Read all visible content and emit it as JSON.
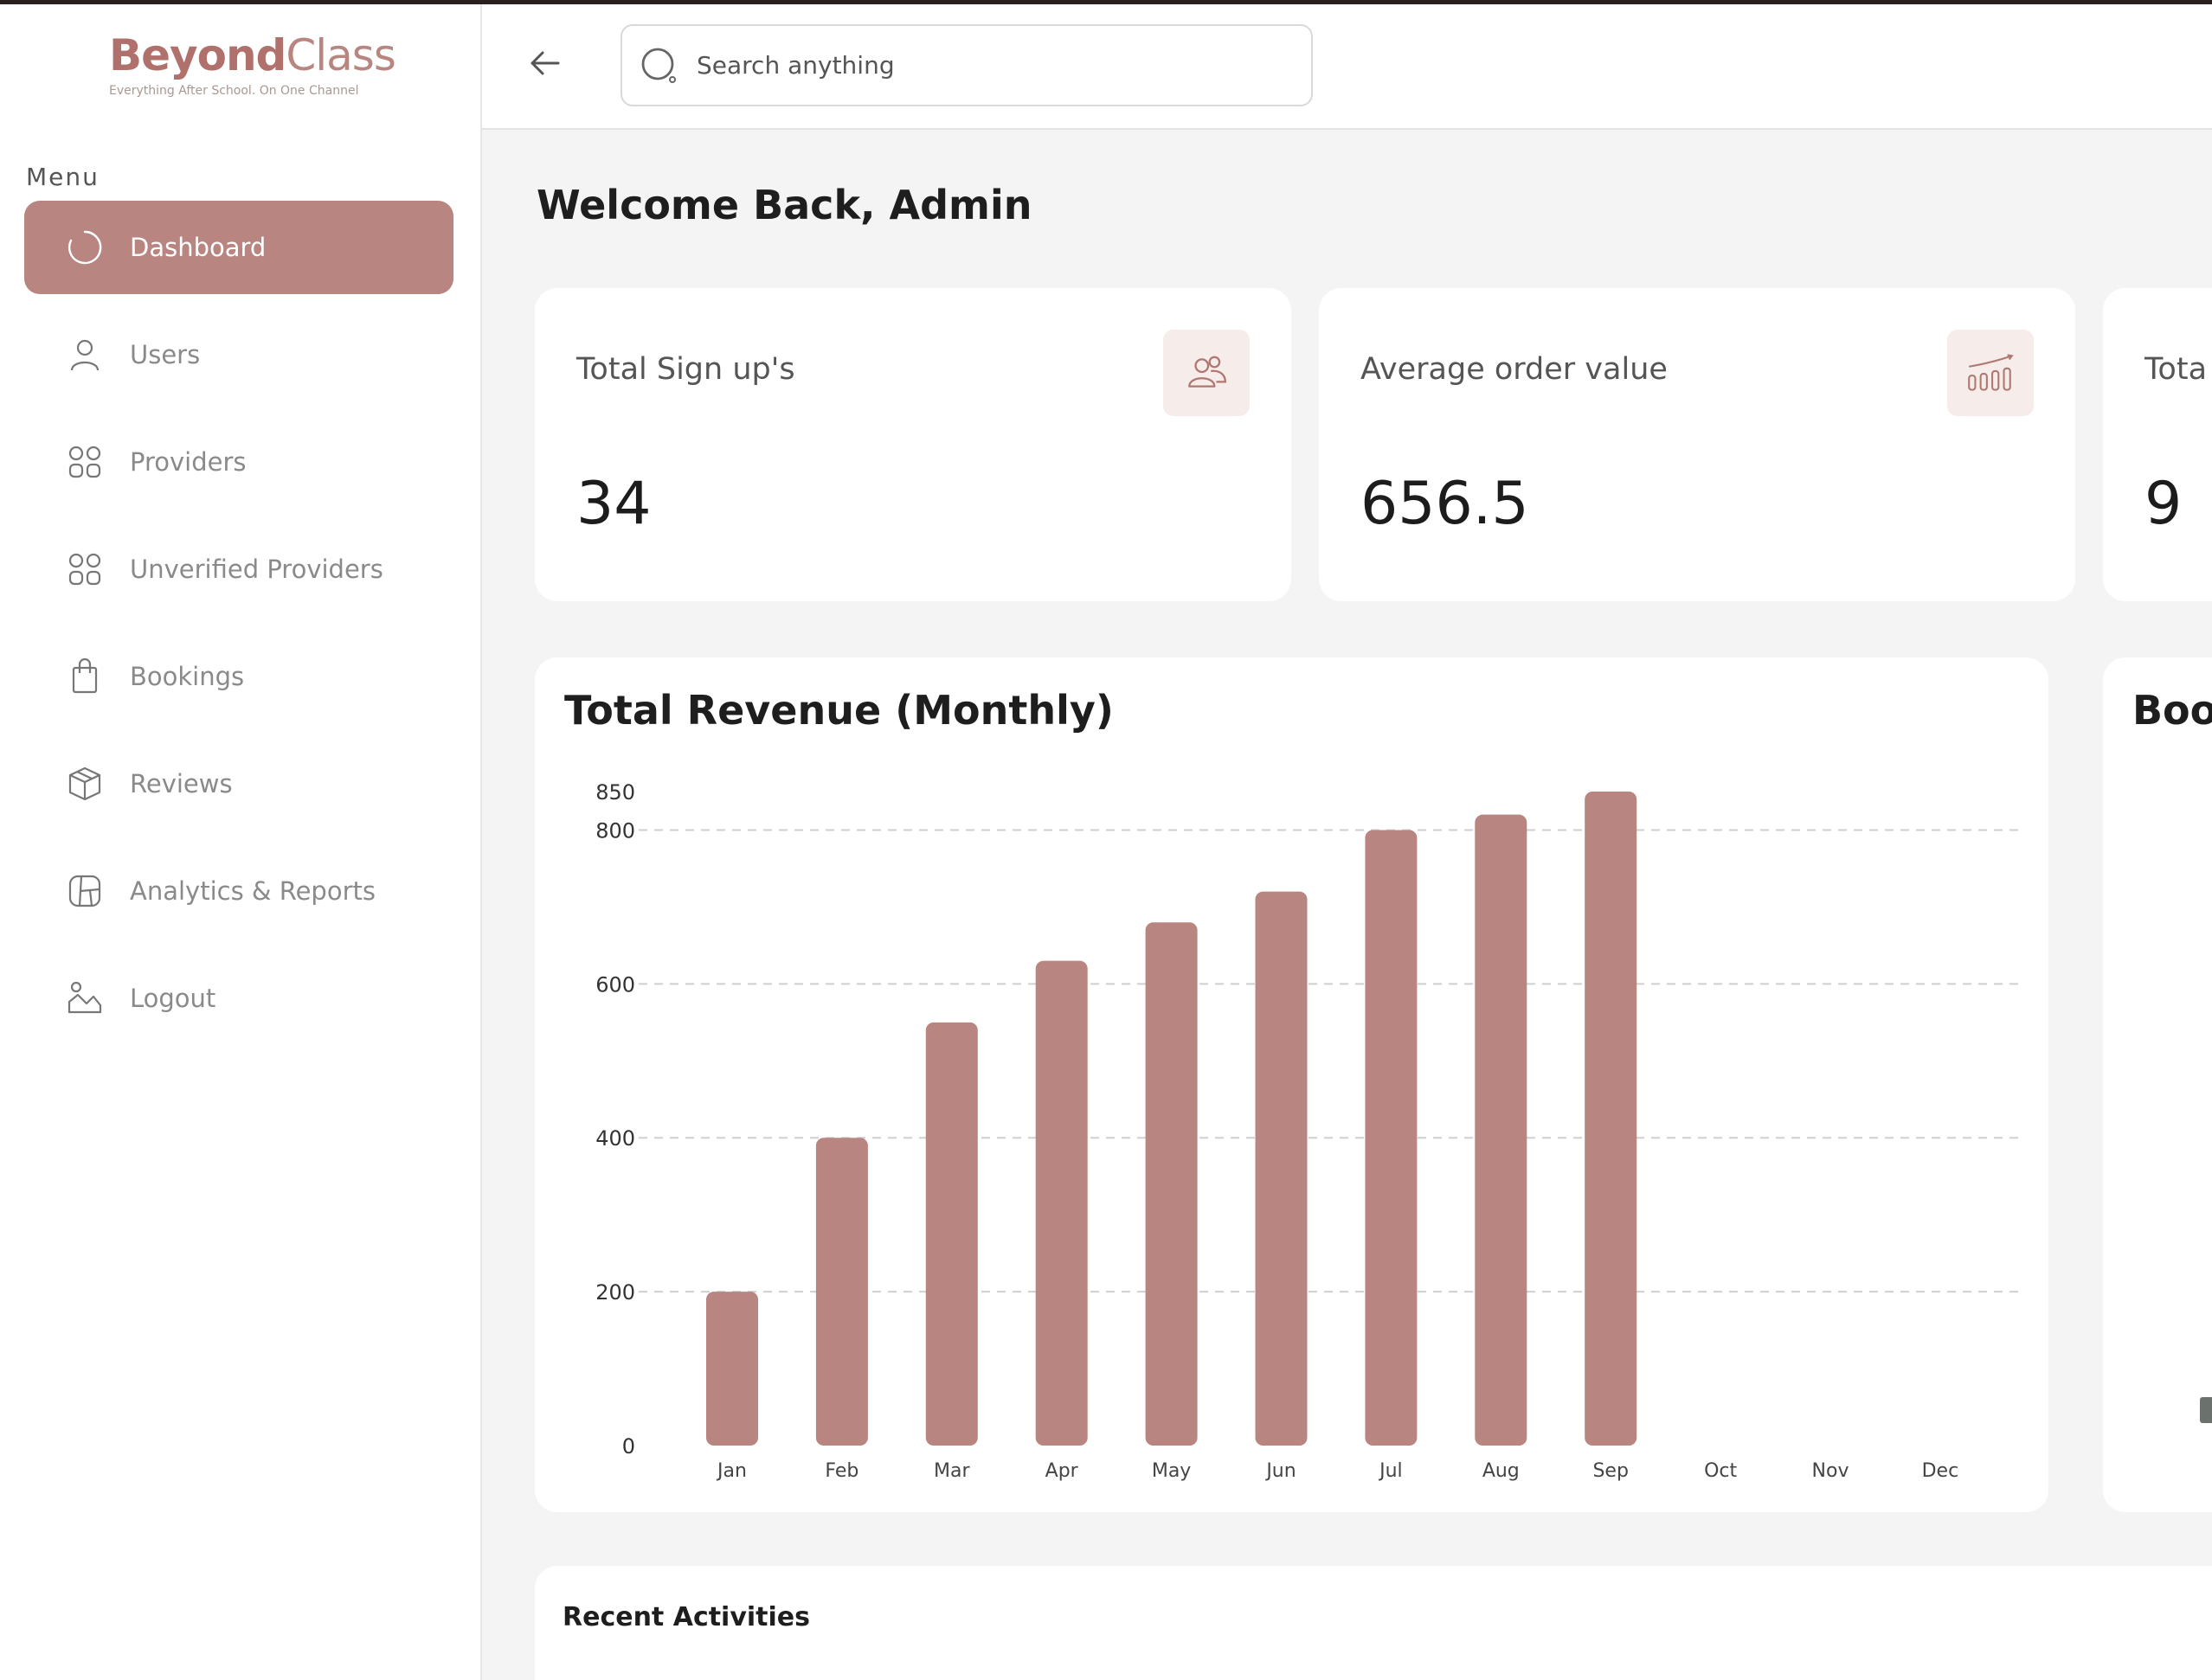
{
  "brand": {
    "name_part1": "Beyond",
    "name_part2": "Class",
    "tagline": "Everything After School. On One Channel",
    "accent_color": "#b88580"
  },
  "sidebar": {
    "menu_title": "Menu",
    "items": [
      {
        "label": "Dashboard",
        "icon": "dashboard-icon",
        "active": true
      },
      {
        "label": "Users",
        "icon": "user-icon",
        "active": false
      },
      {
        "label": "Providers",
        "icon": "grid-icon",
        "active": false
      },
      {
        "label": "Unverified Providers",
        "icon": "grid-icon",
        "active": false
      },
      {
        "label": "Bookings",
        "icon": "shopping-bag-icon",
        "active": false
      },
      {
        "label": "Reviews",
        "icon": "box-icon",
        "active": false
      },
      {
        "label": "Analytics & Reports",
        "icon": "chart-panel-icon",
        "active": false
      },
      {
        "label": "Logout",
        "icon": "logout-icon",
        "active": false
      }
    ]
  },
  "header": {
    "search_placeholder": "Search anything"
  },
  "main": {
    "welcome": "Welcome Back, Admin",
    "stats": [
      {
        "label": "Total Sign up's",
        "value": "34",
        "icon": "users-icon"
      },
      {
        "label": "Average order value",
        "value": "656.5",
        "icon": "bar-trend-icon"
      },
      {
        "label": "Tota",
        "value": "9"
      }
    ],
    "side_card_title": "Book",
    "recent_title": "Recent Activities"
  },
  "chart_data": {
    "type": "bar",
    "title": "Total Revenue (Monthly)",
    "categories": [
      "Jan",
      "Feb",
      "Mar",
      "Apr",
      "May",
      "Jun",
      "Jul",
      "Aug",
      "Sep",
      "Oct",
      "Nov",
      "Dec"
    ],
    "values": [
      200,
      400,
      550,
      630,
      680,
      720,
      800,
      820,
      850,
      0,
      0,
      0
    ],
    "y_ticks": [
      0,
      200,
      400,
      600,
      800,
      850
    ],
    "ylim": [
      0,
      850
    ],
    "grid": true,
    "bar_color": "#b88580"
  }
}
